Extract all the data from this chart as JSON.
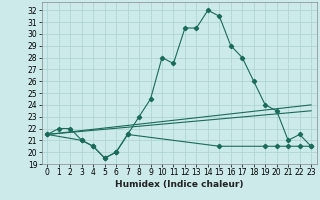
{
  "title": "",
  "xlabel": "Humidex (Indice chaleur)",
  "bg_color": "#cceaea",
  "grid_color": "#b0d4d4",
  "line_color": "#1a6b5a",
  "xlim": [
    -0.5,
    23.5
  ],
  "ylim": [
    19,
    32.7
  ],
  "yticks": [
    19,
    20,
    21,
    22,
    23,
    24,
    25,
    26,
    27,
    28,
    29,
    30,
    31,
    32
  ],
  "xticks": [
    0,
    1,
    2,
    3,
    4,
    5,
    6,
    7,
    8,
    9,
    10,
    11,
    12,
    13,
    14,
    15,
    16,
    17,
    18,
    19,
    20,
    21,
    22,
    23
  ],
  "series1_x": [
    0,
    1,
    2,
    3,
    4,
    5,
    6,
    7,
    8,
    9,
    10,
    11,
    12,
    13,
    14,
    15,
    16,
    17,
    18,
    19,
    20,
    21,
    22,
    23
  ],
  "series1_y": [
    21.5,
    22.0,
    22.0,
    21.0,
    20.5,
    19.5,
    20.0,
    21.5,
    23.0,
    24.5,
    28.0,
    27.5,
    30.5,
    30.5,
    32.0,
    31.5,
    29.0,
    28.0,
    26.0,
    24.0,
    23.5,
    21.0,
    21.5,
    20.5
  ],
  "series2_x": [
    0,
    3,
    4,
    5,
    6,
    7,
    15,
    19,
    20,
    21,
    22,
    23
  ],
  "series2_y": [
    21.5,
    21.0,
    20.5,
    19.5,
    20.0,
    21.5,
    20.5,
    20.5,
    20.5,
    20.5,
    20.5,
    20.5
  ],
  "series3_x": [
    0,
    23
  ],
  "series3_y": [
    21.5,
    24.0
  ],
  "series4_x": [
    0,
    23
  ],
  "series4_y": [
    21.5,
    23.5
  ],
  "tick_fontsize": 5.5,
  "label_fontsize": 6.5
}
